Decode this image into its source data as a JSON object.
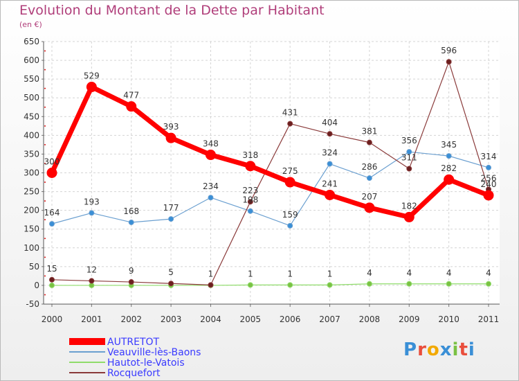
{
  "title": "Evolution du Montant de la Dette par Habitant",
  "subtitle": "(en €)",
  "brand": {
    "letters": [
      "P",
      "r",
      "o",
      "x",
      "i",
      "t",
      "i"
    ],
    "colors": [
      "#3a8fd6",
      "#e94e3c",
      "#f2a900",
      "#3a8fd6",
      "#7ac143",
      "#e94e3c",
      "#3a8fd6"
    ]
  },
  "chart_data": {
    "type": "line",
    "title": "Evolution du Montant de la Dette par Habitant",
    "ylabel": "(en €)",
    "xlabel": "",
    "x": [
      "2000",
      "2001",
      "2002",
      "2003",
      "2004",
      "2005",
      "2006",
      "2007",
      "2008",
      "2009",
      "2010",
      "2011"
    ],
    "yticks": [
      -50,
      0,
      50,
      100,
      150,
      200,
      250,
      300,
      350,
      400,
      450,
      500,
      550,
      600,
      650
    ],
    "ylim": [
      -50,
      650
    ],
    "grid": true,
    "legend": "bottom-left",
    "series": [
      {
        "name": "AUTRETOT",
        "color": "#ff0000",
        "values": [
          300,
          529,
          477,
          393,
          348,
          318,
          275,
          241,
          207,
          182,
          282,
          240
        ],
        "labels": [
          "300",
          "529",
          "477",
          "393",
          "348",
          "318",
          "275",
          "241",
          "207",
          "182",
          "282",
          "240"
        ]
      },
      {
        "name": "Veauville-lès-Baons",
        "color": "#6a9fd0",
        "values": [
          164,
          193,
          168,
          177,
          234,
          198,
          159,
          324,
          286,
          356,
          345,
          314
        ],
        "labels": [
          "164",
          "193",
          "168",
          "177",
          "234",
          "198",
          "159",
          "324",
          "286",
          "356",
          "345",
          "314"
        ]
      },
      {
        "name": "Hautot-le-Vatois",
        "color": "#8fdc6a",
        "values": [
          0,
          0,
          0,
          0,
          0,
          1,
          1,
          1,
          4,
          4,
          4,
          4
        ],
        "labels": [
          "",
          "",
          "",
          "",
          "",
          "1",
          "1",
          "1",
          "4",
          "4",
          "4",
          "4"
        ]
      },
      {
        "name": "Rocquefort",
        "color": "#8a3a3a",
        "values": [
          15,
          12,
          9,
          5,
          1,
          223,
          431,
          404,
          381,
          311,
          596,
          256
        ],
        "labels": [
          "15",
          "12",
          "9",
          "5",
          "1",
          "223",
          "431",
          "404",
          "381",
          "311",
          "596",
          "256"
        ]
      }
    ]
  }
}
